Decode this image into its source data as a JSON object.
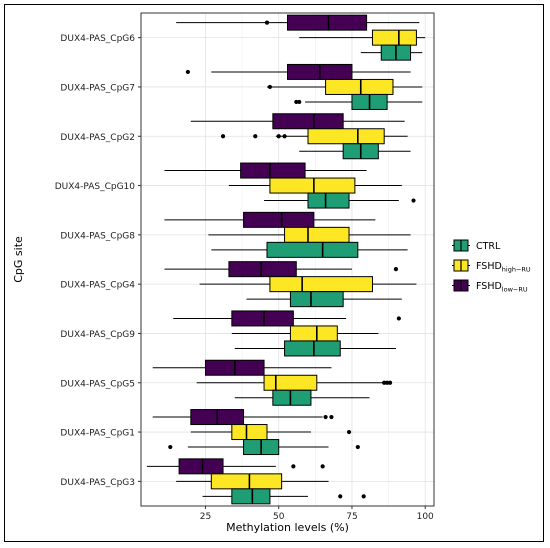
{
  "chart_data": {
    "type": "boxplot",
    "orientation": "horizontal",
    "xlabel": "Methylation levels (%)",
    "ylabel": "CpG site",
    "x_ticks": [
      25,
      50,
      75,
      100
    ],
    "xlim": [
      3,
      103
    ],
    "grid": true,
    "legend_position": "right",
    "colors": {
      "CTRL": "#1f9e76",
      "FSHD_high_RU": "#fde725",
      "FSHD_low_RU": "#440154"
    },
    "legend": [
      {
        "key": "CTRL",
        "label": "CTRL",
        "sub": ""
      },
      {
        "key": "FSHD_high_RU",
        "label": "FSHD",
        "sub": "high−RU"
      },
      {
        "key": "FSHD_low_RU",
        "label": "FSHD",
        "sub": "low−RU"
      }
    ],
    "categories": [
      "DUX4-PAS_CpG6",
      "DUX4-PAS_CpG7",
      "DUX4-PAS_CpG2",
      "DUX4-PAS_CpG10",
      "DUX4-PAS_CpG8",
      "DUX4-PAS_CpG4",
      "DUX4-PAS_CpG9",
      "DUX4-PAS_CpG5",
      "DUX4-PAS_CpG1",
      "DUX4-PAS_CpG3"
    ],
    "series": [
      {
        "key": "FSHD_low_RU",
        "boxes": [
          {
            "wmin": 15,
            "q1": 53,
            "median": 67,
            "q3": 80,
            "wmax": 98,
            "outliers": [
              46
            ]
          },
          {
            "wmin": 27,
            "q1": 53,
            "median": 64,
            "q3": 75,
            "wmax": 95,
            "outliers": [
              19
            ]
          },
          {
            "wmin": 20,
            "q1": 48,
            "median": 62,
            "q3": 72,
            "wmax": 93,
            "outliers": []
          },
          {
            "wmin": 11,
            "q1": 37,
            "median": 47,
            "q3": 59,
            "wmax": 80,
            "outliers": []
          },
          {
            "wmin": 11,
            "q1": 38,
            "median": 51,
            "q3": 62,
            "wmax": 83,
            "outliers": []
          },
          {
            "wmin": 11,
            "q1": 33,
            "median": 44,
            "q3": 56,
            "wmax": 75,
            "outliers": [
              90
            ]
          },
          {
            "wmin": 14,
            "q1": 34,
            "median": 45,
            "q3": 55,
            "wmax": 73,
            "outliers": [
              91
            ]
          },
          {
            "wmin": 7,
            "q1": 25,
            "median": 35,
            "q3": 45,
            "wmax": 68,
            "outliers": []
          },
          {
            "wmin": 7,
            "q1": 20,
            "median": 29,
            "q3": 38,
            "wmax": 65,
            "outliers": [
              66,
              68
            ]
          },
          {
            "wmin": 5,
            "q1": 16,
            "median": 24,
            "q3": 31,
            "wmax": 49,
            "outliers": [
              55,
              65
            ]
          }
        ]
      },
      {
        "key": "FSHD_high_RU",
        "boxes": [
          {
            "wmin": 57,
            "q1": 82,
            "median": 91,
            "q3": 97,
            "wmax": 100,
            "outliers": []
          },
          {
            "wmin": 46,
            "q1": 66,
            "median": 78,
            "q3": 89,
            "wmax": 99,
            "outliers": [
              47
            ]
          },
          {
            "wmin": 49,
            "q1": 60,
            "median": 77,
            "q3": 86,
            "wmax": 94,
            "outliers": [
              31,
              42,
              50,
              52
            ]
          },
          {
            "wmin": 33,
            "q1": 47,
            "median": 62,
            "q3": 76,
            "wmax": 92,
            "outliers": []
          },
          {
            "wmin": 26,
            "q1": 52,
            "median": 60,
            "q3": 74,
            "wmax": 95,
            "outliers": []
          },
          {
            "wmin": 23,
            "q1": 47,
            "median": 58,
            "q3": 82,
            "wmax": 97,
            "outliers": []
          },
          {
            "wmin": 34,
            "q1": 54,
            "median": 63,
            "q3": 70,
            "wmax": 84,
            "outliers": []
          },
          {
            "wmin": 22,
            "q1": 45,
            "median": 49,
            "q3": 63,
            "wmax": 88,
            "outliers": [
              86,
              87,
              88
            ]
          },
          {
            "wmin": 20,
            "q1": 34,
            "median": 39,
            "q3": 46,
            "wmax": 61,
            "outliers": [
              74
            ]
          },
          {
            "wmin": 15,
            "q1": 27,
            "median": 40,
            "q3": 51,
            "wmax": 67,
            "outliers": []
          }
        ]
      },
      {
        "key": "CTRL",
        "boxes": [
          {
            "wmin": 78,
            "q1": 85,
            "median": 90,
            "q3": 95,
            "wmax": 99,
            "outliers": []
          },
          {
            "wmin": 59,
            "q1": 75,
            "median": 81,
            "q3": 87,
            "wmax": 99,
            "outliers": [
              56,
              57
            ]
          },
          {
            "wmin": 57,
            "q1": 72,
            "median": 78,
            "q3": 84,
            "wmax": 95,
            "outliers": []
          },
          {
            "wmin": 45,
            "q1": 60,
            "median": 66,
            "q3": 74,
            "wmax": 91,
            "outliers": [
              96
            ]
          },
          {
            "wmin": 27,
            "q1": 46,
            "median": 65,
            "q3": 77,
            "wmax": 94,
            "outliers": []
          },
          {
            "wmin": 39,
            "q1": 54,
            "median": 61,
            "q3": 72,
            "wmax": 92,
            "outliers": []
          },
          {
            "wmin": 35,
            "q1": 52,
            "median": 62,
            "q3": 71,
            "wmax": 90,
            "outliers": []
          },
          {
            "wmin": 35,
            "q1": 48,
            "median": 54,
            "q3": 61,
            "wmax": 81,
            "outliers": []
          },
          {
            "wmin": 19,
            "q1": 38,
            "median": 44,
            "q3": 50,
            "wmax": 67,
            "outliers": [
              13,
              77
            ]
          },
          {
            "wmin": 24,
            "q1": 34,
            "median": 41,
            "q3": 47,
            "wmax": 60,
            "outliers": [
              71,
              79
            ]
          }
        ]
      }
    ]
  }
}
